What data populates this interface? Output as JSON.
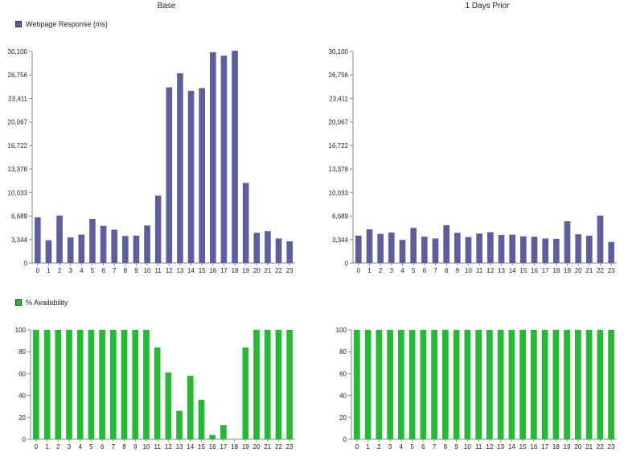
{
  "titles": {
    "left": "Base",
    "right": "1 Days Prior"
  },
  "legend": {
    "response": {
      "label": "Webpage Response (ms)",
      "color": "#5c5ea0"
    },
    "availability": {
      "label": "% Availability",
      "color": "#22bb33"
    }
  },
  "chart_data": [
    {
      "id": "response-base",
      "type": "bar",
      "title": "Base",
      "series": [
        {
          "name": "Webpage Response (ms)",
          "values": [
            6500,
            3250,
            6750,
            3650,
            4050,
            6300,
            5300,
            4750,
            3850,
            3900,
            5350,
            9600,
            25000,
            27000,
            24500,
            24900,
            30000,
            29500,
            30200,
            11400,
            4300,
            4550,
            3500,
            3100
          ]
        }
      ],
      "categories": [
        "0",
        "1",
        "2",
        "3",
        "4",
        "5",
        "6",
        "7",
        "8",
        "9",
        "10",
        "11",
        "12",
        "13",
        "14",
        "15",
        "16",
        "17",
        "18",
        "19",
        "20",
        "21",
        "22",
        "23"
      ],
      "ylim": [
        0,
        30100
      ],
      "yticks": [
        0,
        3344,
        6689,
        10033,
        13378,
        16722,
        20067,
        23411,
        26756,
        30100
      ],
      "ytick_labels": [
        "0",
        "3,344",
        "6,689",
        "10,033",
        "13,378",
        "16,722",
        "20,067",
        "23,411",
        "26,756",
        "30,100"
      ],
      "color": "#5c5ea0"
    },
    {
      "id": "response-prior",
      "type": "bar",
      "title": "1 Days Prior",
      "series": [
        {
          "name": "Webpage Response (ms)",
          "values": [
            3900,
            4800,
            4150,
            4350,
            3300,
            5000,
            3750,
            3500,
            5400,
            4300,
            3700,
            4200,
            4400,
            4000,
            4050,
            3800,
            3750,
            3500,
            3450,
            5950,
            4100,
            3900,
            6750,
            3000
          ]
        }
      ],
      "categories": [
        "0",
        "1",
        "2",
        "3",
        "4",
        "5",
        "6",
        "7",
        "8",
        "9",
        "10",
        "11",
        "12",
        "13",
        "14",
        "15",
        "16",
        "17",
        "18",
        "19",
        "20",
        "21",
        "22",
        "23"
      ],
      "ylim": [
        0,
        30100
      ],
      "yticks": [
        0,
        3344,
        6689,
        10033,
        13378,
        16722,
        20067,
        23411,
        26756,
        30100
      ],
      "ytick_labels": [
        "0",
        "3,344",
        "6,689",
        "10,033",
        "13,378",
        "16,722",
        "20,067",
        "23,411",
        "26,756",
        "30,100"
      ],
      "color": "#5c5ea0"
    },
    {
      "id": "availability-base",
      "type": "bar",
      "series": [
        {
          "name": "% Availability",
          "values": [
            100,
            100,
            100,
            100,
            100,
            100,
            100,
            100,
            100,
            100,
            100,
            84,
            61,
            26,
            58,
            36,
            4,
            13,
            0,
            84,
            100,
            100,
            100,
            100
          ]
        }
      ],
      "categories": [
        "0",
        "1",
        "2",
        "3",
        "4",
        "5",
        "6",
        "7",
        "8",
        "9",
        "10",
        "11",
        "12",
        "13",
        "14",
        "15",
        "16",
        "17",
        "18",
        "19",
        "20",
        "21",
        "22",
        "23"
      ],
      "ylim": [
        0,
        100
      ],
      "yticks": [
        0,
        20,
        40,
        60,
        80,
        100
      ],
      "ytick_labels": [
        "0",
        "20",
        "40",
        "60",
        "80",
        "100"
      ],
      "color": "#22bb33"
    },
    {
      "id": "availability-prior",
      "type": "bar",
      "series": [
        {
          "name": "% Availability",
          "values": [
            100,
            100,
            100,
            100,
            100,
            100,
            100,
            100,
            100,
            100,
            100,
            100,
            100,
            100,
            100,
            100,
            100,
            100,
            100,
            100,
            100,
            100,
            100,
            100
          ]
        }
      ],
      "categories": [
        "0",
        "1",
        "2",
        "3",
        "4",
        "5",
        "6",
        "7",
        "8",
        "9",
        "10",
        "11",
        "12",
        "13",
        "14",
        "15",
        "16",
        "17",
        "18",
        "19",
        "20",
        "21",
        "22",
        "23"
      ],
      "ylim": [
        0,
        100
      ],
      "yticks": [
        0,
        20,
        40,
        60,
        80,
        100
      ],
      "ytick_labels": [
        "0",
        "20",
        "40",
        "60",
        "80",
        "100"
      ],
      "color": "#22bb33"
    }
  ]
}
